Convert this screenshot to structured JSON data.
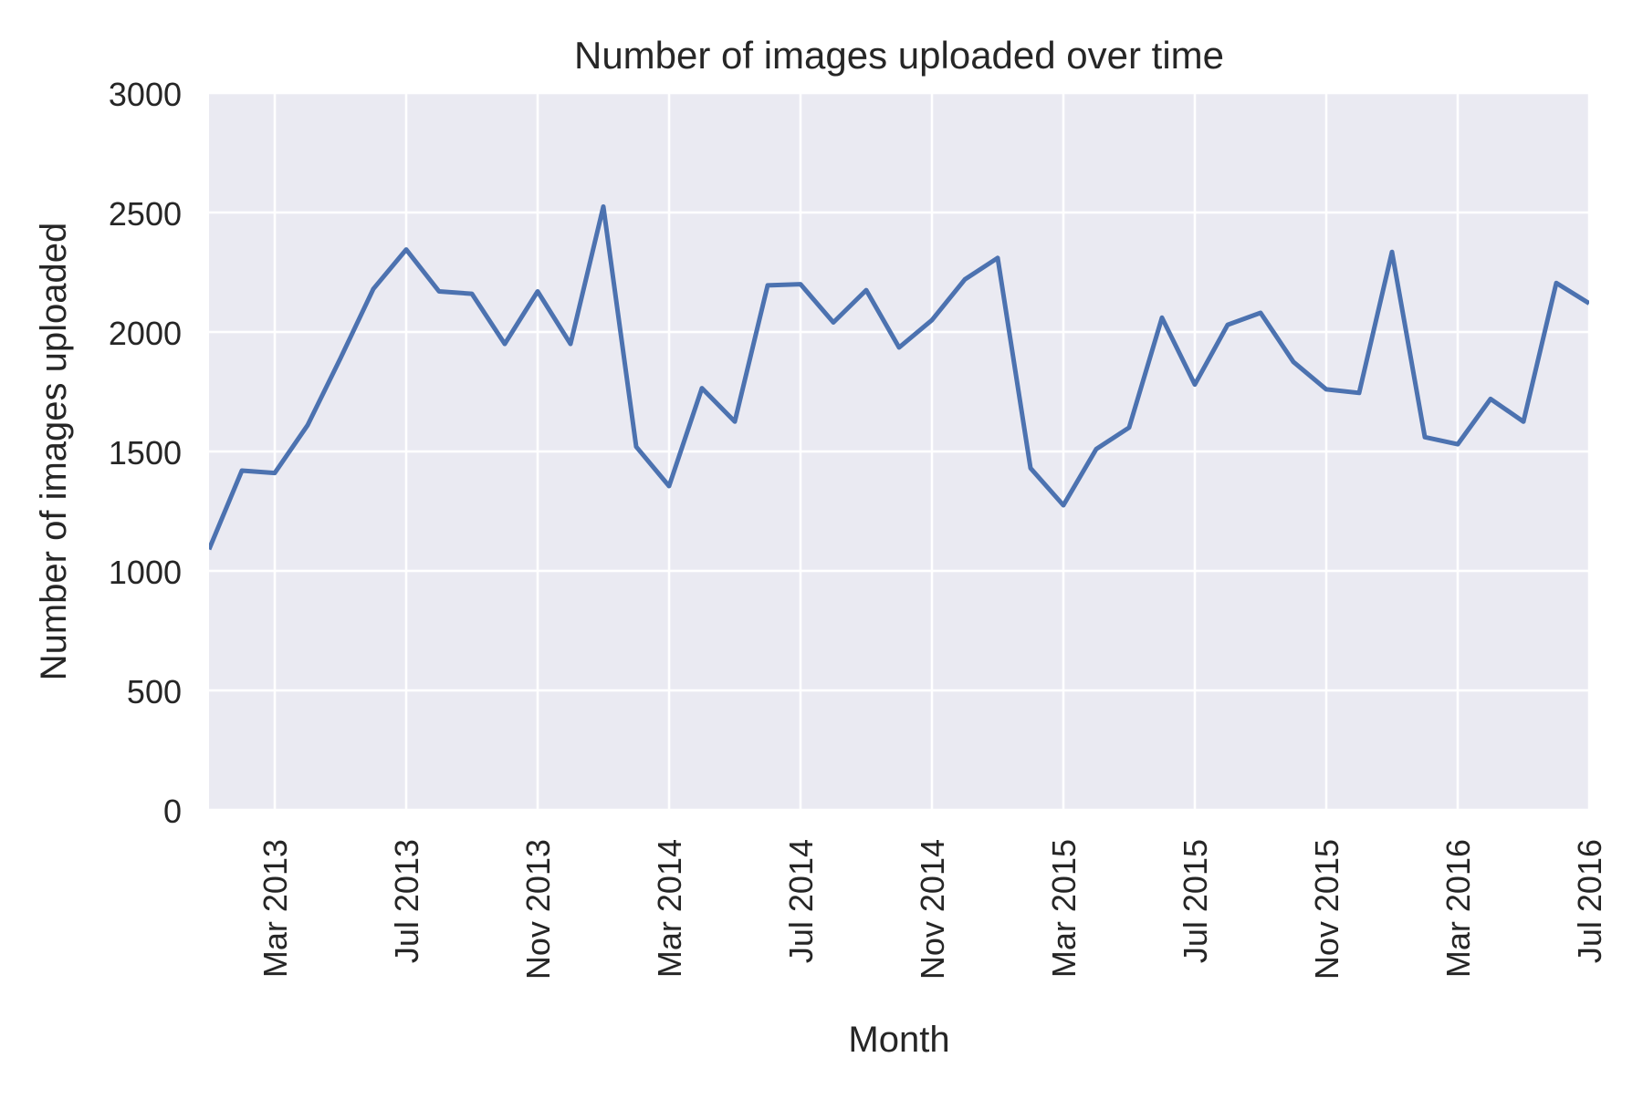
{
  "chart_data": {
    "type": "line",
    "title": "Number of images uploaded over time",
    "xlabel": "Month",
    "ylabel": "Number of images uploaded",
    "x_ticks": [
      "Mar 2013",
      "Jul 2013",
      "Nov 2013",
      "Mar 2014",
      "Jul 2014",
      "Nov 2014",
      "Mar 2015",
      "Jul 2015",
      "Nov 2015",
      "Mar 2016",
      "Jul 2016"
    ],
    "y_ticks": [
      "0",
      "500",
      "1000",
      "1500",
      "2000",
      "2500",
      "3000"
    ],
    "ylim": [
      0,
      3000
    ],
    "xlim": [
      "2013-01",
      "2016-07"
    ],
    "grid": true,
    "x_tick_rotation": "vertical",
    "colors": {
      "line": "#4c72b0",
      "plot_bg": "#eaeaf2",
      "grid": "#ffffff",
      "text": "#262626"
    },
    "series": [
      {
        "x": [
          "2013-01",
          "2013-02",
          "2013-03",
          "2013-04",
          "2013-05",
          "2013-06",
          "2013-07",
          "2013-08",
          "2013-09",
          "2013-10",
          "2013-11",
          "2013-12",
          "2014-01",
          "2014-02",
          "2014-03",
          "2014-04",
          "2014-05",
          "2014-06",
          "2014-07",
          "2014-08",
          "2014-09",
          "2014-10",
          "2014-11",
          "2014-12",
          "2015-01",
          "2015-02",
          "2015-03",
          "2015-04",
          "2015-05",
          "2015-06",
          "2015-07",
          "2015-08",
          "2015-09",
          "2015-10",
          "2015-11",
          "2015-12",
          "2016-01",
          "2016-02",
          "2016-03",
          "2016-04",
          "2016-05",
          "2016-06",
          "2016-07"
        ],
        "values": [
          1090,
          1420,
          1410,
          1610,
          1890,
          2180,
          2345,
          2170,
          2160,
          1950,
          2170,
          1950,
          2525,
          1520,
          1355,
          1765,
          1625,
          2195,
          2200,
          2040,
          2175,
          1935,
          2050,
          2220,
          2310,
          1430,
          1275,
          1510,
          1600,
          2060,
          1780,
          2030,
          2080,
          1875,
          1760,
          1745,
          2335,
          1560,
          1530,
          1720,
          1625,
          2205,
          2120
        ]
      }
    ]
  }
}
